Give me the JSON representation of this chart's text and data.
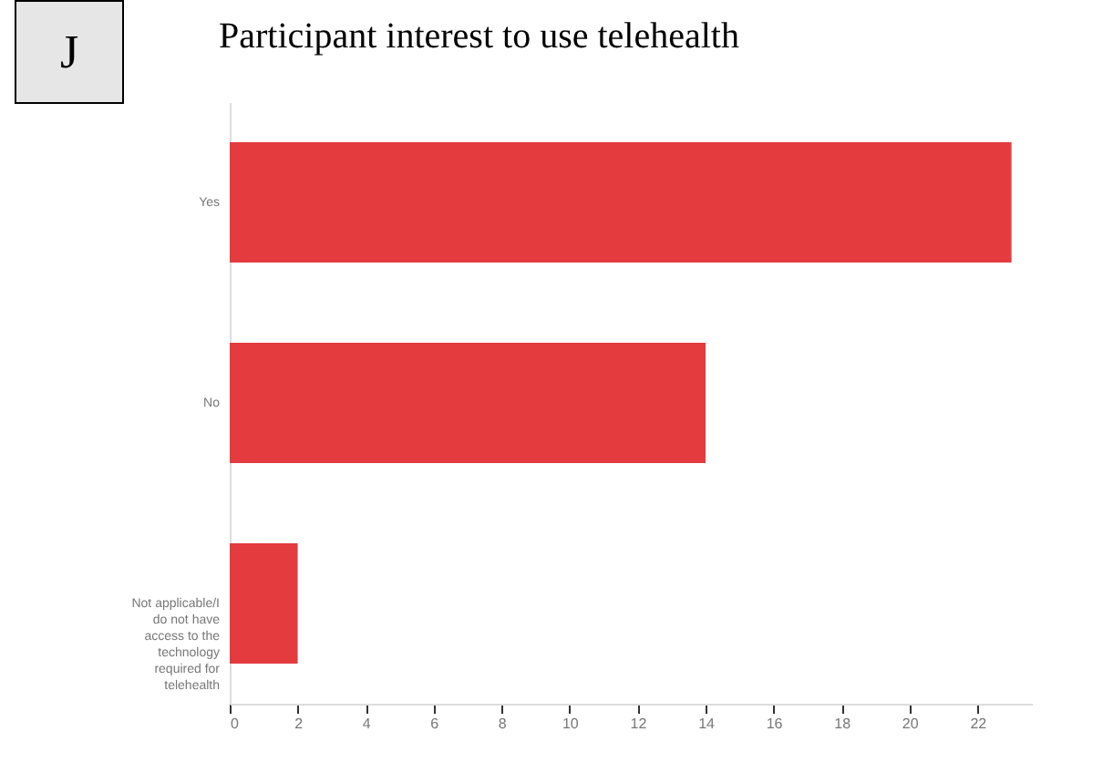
{
  "chart_data": {
    "type": "bar",
    "orientation": "horizontal",
    "title": "Participant interest to use telehealth",
    "annotations": [
      "J"
    ],
    "categories": [
      "Yes",
      "No",
      "Not applicable/I do not have access to the technology required for telehealth"
    ],
    "values": [
      23,
      14,
      2
    ],
    "color": "#e33b3e",
    "xlim": [
      0,
      23.6
    ],
    "xticks": [
      0,
      2,
      4,
      6,
      8,
      10,
      12,
      14,
      16,
      18,
      20,
      22
    ],
    "grid": false
  }
}
